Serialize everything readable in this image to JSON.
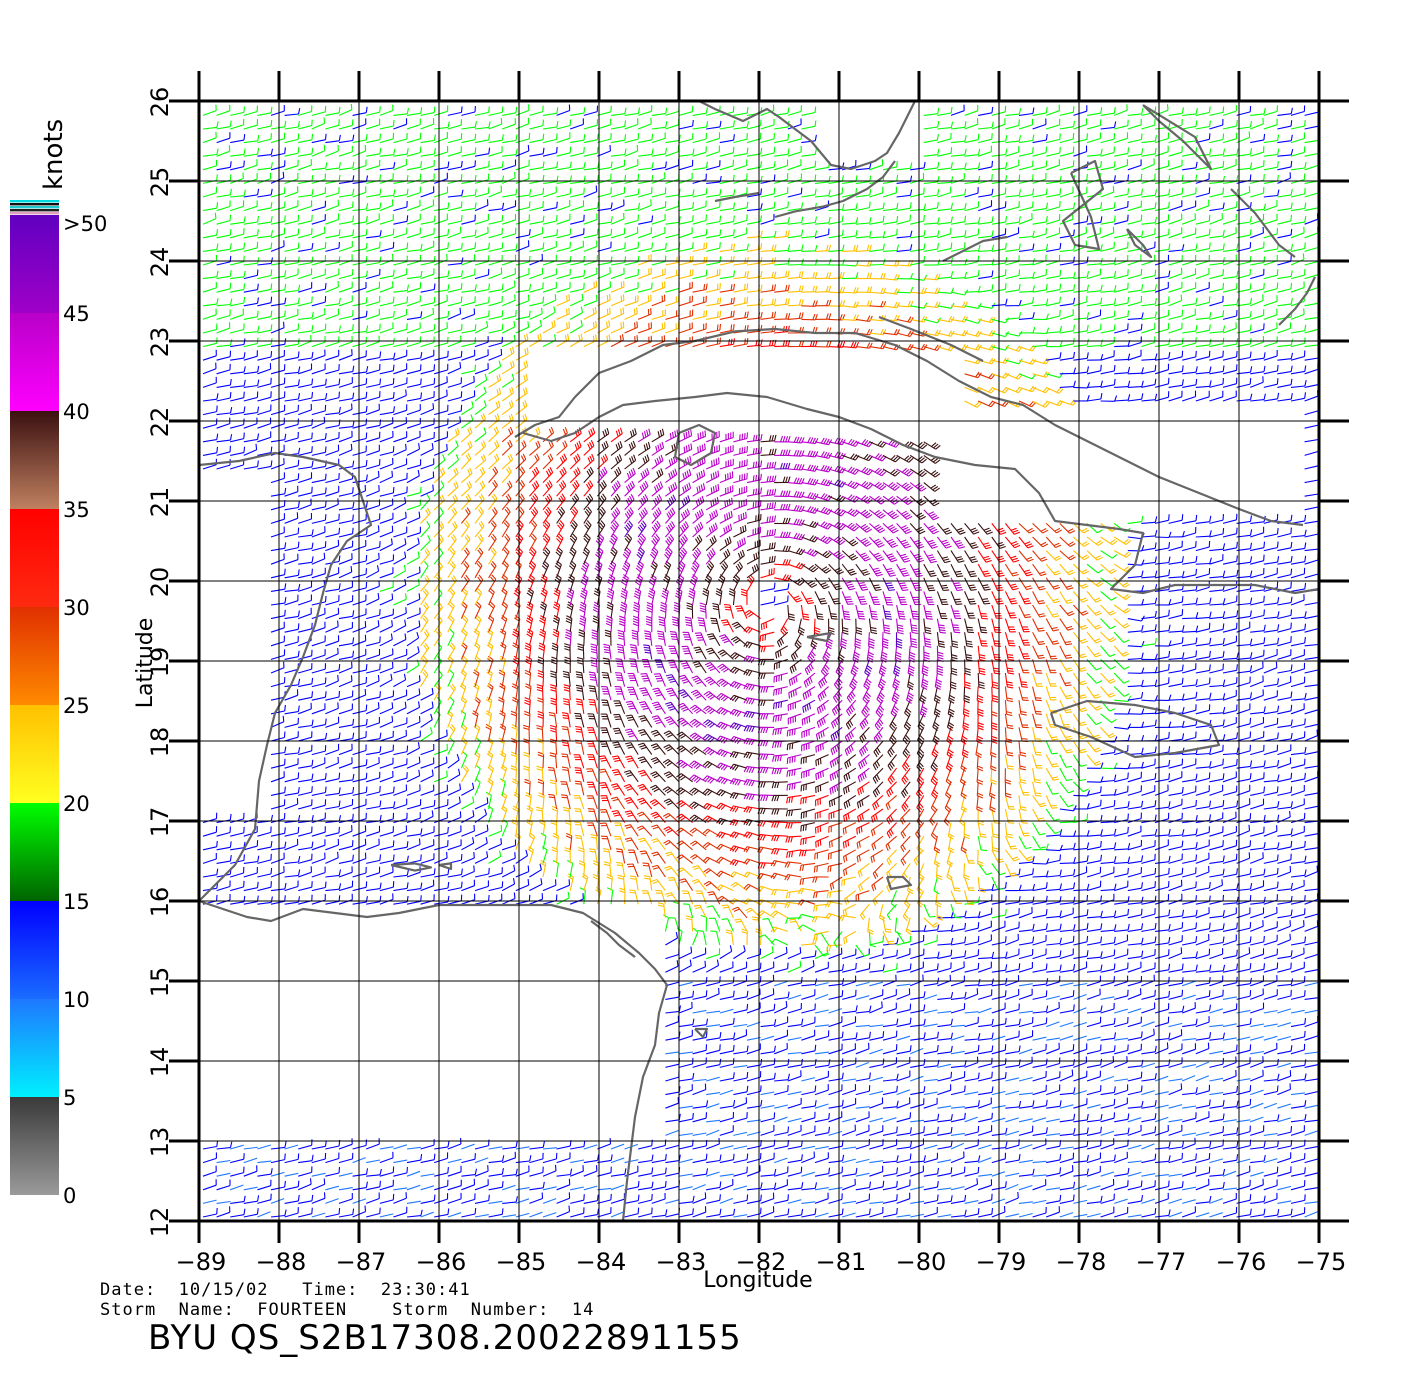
{
  "colorbar": {
    "title": "knots",
    "top_label": ">50",
    "labels": [
      "0",
      "5",
      "10",
      "15",
      "20",
      "25",
      "30",
      "35",
      "40",
      "45"
    ],
    "bands": [
      {
        "from": 0,
        "to": 5,
        "top": "#3a3a3a",
        "bottom": "#9a9a9a"
      },
      {
        "from": 5,
        "to": 10,
        "top": "#1e78ff",
        "bottom": "#00f0ff"
      },
      {
        "from": 10,
        "to": 15,
        "top": "#0000ff",
        "bottom": "#1a6cff"
      },
      {
        "from": 15,
        "to": 20,
        "top": "#00ff00",
        "bottom": "#006400"
      },
      {
        "from": 20,
        "to": 25,
        "top": "#ffc000",
        "bottom": "#ffff20"
      },
      {
        "from": 25,
        "to": 30,
        "top": "#e03000",
        "bottom": "#ff8a00"
      },
      {
        "from": 30,
        "to": 35,
        "top": "#ff0000",
        "bottom": "#ff2a10"
      },
      {
        "from": 35,
        "to": 40,
        "top": "#3a1010",
        "bottom": "#c08060"
      },
      {
        "from": 40,
        "to": 45,
        "top": "#b800c8",
        "bottom": "#ff00ff"
      },
      {
        "from": 45,
        "to": 50,
        "top": "#6000c0",
        "bottom": "#a000c8"
      }
    ]
  },
  "map": {
    "xlabel": "Longitude",
    "ylabel": "Latitude",
    "lon_range": [
      -89,
      -75
    ],
    "lat_range": [
      12,
      26
    ],
    "lon_ticks": [
      "-89",
      "-88",
      "-87",
      "-86",
      "-85",
      "-84",
      "-83",
      "-82",
      "-81",
      "-80",
      "-79",
      "-78",
      "-77",
      "-76",
      "-75"
    ],
    "lat_ticks": [
      "12",
      "13",
      "14",
      "15",
      "16",
      "17",
      "18",
      "19",
      "20",
      "21",
      "22",
      "23",
      "24",
      "25",
      "26"
    ],
    "grid": true,
    "coastline_color": "#666666",
    "storm_center": {
      "lon": -81.9,
      "lat": 19.8
    }
  },
  "footer": {
    "date_line": "Date:  10/15/02   Time:  23:30:41",
    "storm_line": "Storm  Name:  FOURTEEN    Storm  Number:  14",
    "file_id": "BYU  QS_S2B17308.20022891155"
  }
}
